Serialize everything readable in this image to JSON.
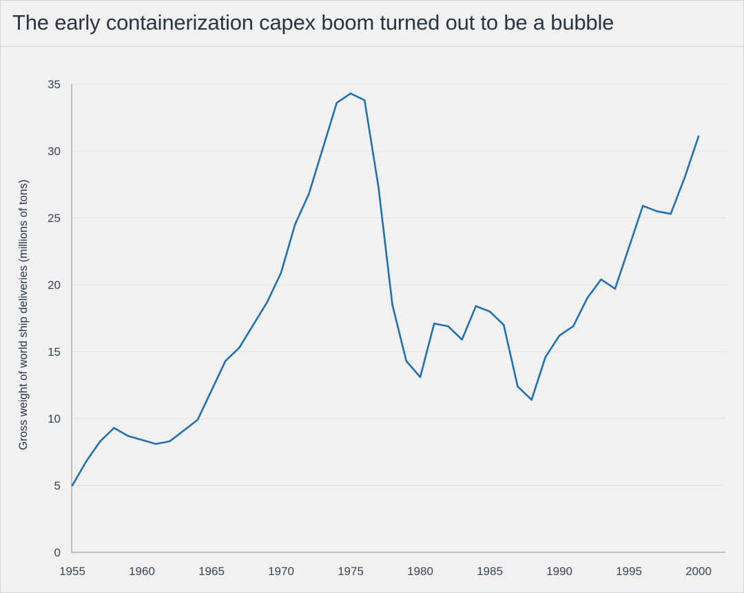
{
  "chart_data": {
    "type": "line",
    "title": "The early containerization capex boom turned out to be a bubble",
    "xlabel": "",
    "ylabel": "Gross weight of world ship deliveries (millions of tons)",
    "xlim": [
      1955,
      2000
    ],
    "ylim": [
      0,
      35
    ],
    "xticks": [
      1955,
      1960,
      1965,
      1970,
      1975,
      1980,
      1985,
      1990,
      1995,
      2000
    ],
    "yticks": [
      0,
      5,
      10,
      15,
      20,
      25,
      30,
      35
    ],
    "grid": "horizontal",
    "series_color": "#1f6fb4",
    "x": [
      1955,
      1956,
      1957,
      1958,
      1959,
      1960,
      1961,
      1962,
      1963,
      1964,
      1965,
      1966,
      1967,
      1968,
      1969,
      1970,
      1971,
      1972,
      1973,
      1974,
      1975,
      1976,
      1977,
      1978,
      1979,
      1980,
      1981,
      1982,
      1983,
      1984,
      1985,
      1986,
      1987,
      1988,
      1989,
      1990,
      1991,
      1992,
      1993,
      1994,
      1995,
      1996,
      1997,
      1998,
      1999,
      2000
    ],
    "series": [
      {
        "values": [
          5.0,
          6.8,
          8.3,
          9.3,
          8.7,
          8.4,
          8.1,
          8.3,
          9.1,
          9.9,
          12.1,
          14.3,
          15.3,
          17.0,
          18.7,
          20.9,
          24.5,
          26.8,
          30.2,
          33.6,
          34.3,
          33.8,
          27.3,
          18.5,
          14.3,
          13.1,
          17.1,
          16.9,
          15.9,
          18.4,
          18.0,
          17.0,
          12.4,
          11.4,
          14.6,
          16.2,
          16.9,
          19.0,
          20.4,
          19.7,
          22.8,
          25.9,
          25.5,
          25.3,
          28.0,
          31.1
        ]
      }
    ]
  }
}
